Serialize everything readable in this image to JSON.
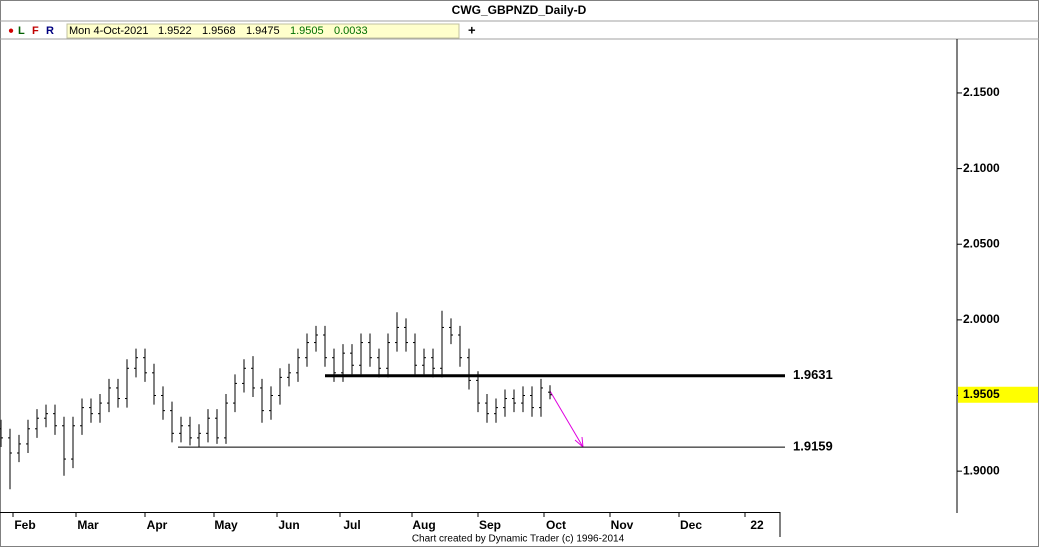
{
  "header": {
    "title": "CWG_GBPNZD_Daily-D",
    "dot": "●",
    "buttons": [
      "L",
      "F",
      "R"
    ],
    "info": [
      "Mon 4-Oct-2021",
      "1.9522",
      "1.9568",
      "1.9475",
      "1.9505",
      "0.0033"
    ],
    "plus": "+"
  },
  "footer": "Chart created by Dynamic Trader  (c) 1996-2014",
  "chart_data": {
    "type": "ohlc",
    "color": "#000000",
    "x": [
      0,
      3,
      6,
      9,
      12,
      15,
      18,
      21,
      24,
      27,
      30,
      33,
      36,
      39,
      42,
      45,
      48,
      51,
      54,
      57,
      60,
      63,
      66,
      69,
      72,
      75,
      78,
      81,
      84,
      87,
      90,
      93,
      96,
      99,
      102,
      105,
      108,
      111,
      114,
      117,
      120,
      123,
      126,
      129,
      132,
      135,
      138,
      141,
      144,
      147,
      150,
      153,
      156,
      159,
      162,
      165,
      168,
      171,
      174,
      177,
      180,
      183
    ],
    "open": [
      1.928,
      1.922,
      1.912,
      1.918,
      1.928,
      1.935,
      1.938,
      1.93,
      1.908,
      1.93,
      1.942,
      1.938,
      1.945,
      1.955,
      1.948,
      1.968,
      1.975,
      1.965,
      1.95,
      1.94,
      1.925,
      1.93,
      1.922,
      1.925,
      1.935,
      1.922,
      1.945,
      1.958,
      1.968,
      1.955,
      1.94,
      1.95,
      1.962,
      1.965,
      1.975,
      1.985,
      1.99,
      1.975,
      1.965,
      1.978,
      1.97,
      1.985,
      1.975,
      1.968,
      1.985,
      1.995,
      1.985,
      1.97,
      1.975,
      1.968,
      1.995,
      1.99,
      1.975,
      1.96,
      1.945,
      1.938,
      1.942,
      1.948,
      1.945,
      1.95,
      1.942,
      1.9522
    ],
    "high": [
      1.934,
      1.928,
      1.924,
      1.934,
      1.941,
      1.944,
      1.944,
      1.936,
      1.936,
      1.948,
      1.948,
      1.951,
      1.961,
      1.961,
      1.974,
      1.981,
      1.981,
      1.971,
      1.956,
      1.946,
      1.936,
      1.936,
      1.931,
      1.941,
      1.941,
      1.951,
      1.964,
      1.974,
      1.976,
      1.961,
      1.956,
      1.968,
      1.971,
      1.981,
      1.991,
      1.996,
      1.996,
      1.981,
      1.984,
      1.984,
      1.991,
      1.991,
      1.981,
      1.991,
      2.005,
      2.001,
      1.991,
      1.981,
      1.981,
      2.006,
      2.001,
      1.996,
      1.981,
      1.966,
      1.951,
      1.948,
      1.954,
      1.954,
      1.956,
      1.956,
      1.961,
      1.9568
    ],
    "low": [
      1.916,
      1.888,
      1.906,
      1.912,
      1.922,
      1.929,
      1.924,
      1.897,
      1.902,
      1.924,
      1.932,
      1.932,
      1.939,
      1.942,
      1.942,
      1.962,
      1.959,
      1.944,
      1.934,
      1.919,
      1.919,
      1.917,
      1.916,
      1.919,
      1.918,
      1.918,
      1.939,
      1.952,
      1.949,
      1.932,
      1.934,
      1.944,
      1.956,
      1.959,
      1.969,
      1.979,
      1.969,
      1.959,
      1.959,
      1.964,
      1.964,
      1.969,
      1.962,
      1.962,
      1.979,
      1.979,
      1.964,
      1.964,
      1.962,
      1.962,
      1.984,
      1.969,
      1.954,
      1.939,
      1.932,
      1.932,
      1.936,
      1.939,
      1.939,
      1.936,
      1.936,
      1.9475
    ],
    "close": [
      1.922,
      1.912,
      1.918,
      1.928,
      1.935,
      1.938,
      1.93,
      1.908,
      1.93,
      1.942,
      1.938,
      1.945,
      1.955,
      1.948,
      1.968,
      1.975,
      1.965,
      1.95,
      1.94,
      1.925,
      1.93,
      1.922,
      1.925,
      1.935,
      1.922,
      1.945,
      1.958,
      1.968,
      1.955,
      1.94,
      1.95,
      1.962,
      1.965,
      1.975,
      1.985,
      1.99,
      1.975,
      1.965,
      1.978,
      1.97,
      1.985,
      1.975,
      1.968,
      1.985,
      1.995,
      1.985,
      1.97,
      1.975,
      1.968,
      1.995,
      1.99,
      1.975,
      1.96,
      1.945,
      1.938,
      1.942,
      1.948,
      1.945,
      1.95,
      1.942,
      1.955,
      1.9505
    ],
    "xlim": [
      0,
      260
    ],
    "ylim": [
      1.873,
      2.185
    ],
    "xticks": [
      {
        "value": 8,
        "label": "Feb"
      },
      {
        "value": 29,
        "label": "Mar"
      },
      {
        "value": 52,
        "label": "Apr"
      },
      {
        "value": 75,
        "label": "May"
      },
      {
        "value": 96,
        "label": "Jun"
      },
      {
        "value": 117,
        "label": "Jul"
      },
      {
        "value": 141,
        "label": "Aug"
      },
      {
        "value": 163,
        "label": "Sep"
      },
      {
        "value": 185,
        "label": "Oct"
      },
      {
        "value": 207,
        "label": "Nov"
      },
      {
        "value": 230,
        "label": "Dec"
      },
      {
        "value": 252,
        "label": "22"
      }
    ],
    "yticks": [
      {
        "value": 1.9,
        "label": "1.9000"
      },
      {
        "value": 1.95,
        "label": "1.9500"
      },
      {
        "value": 2.0,
        "label": "2.0000"
      },
      {
        "value": 2.05,
        "label": "2.0500"
      },
      {
        "value": 2.1,
        "label": "2.1000"
      },
      {
        "value": 2.15,
        "label": "2.1500"
      }
    ],
    "levels": [
      {
        "value": 1.9631,
        "label": "1.9631"
      },
      {
        "value": 1.9159,
        "label": "1.9159"
      }
    ],
    "last_price": {
      "value": 1.9505,
      "label": "1.9505"
    }
  }
}
